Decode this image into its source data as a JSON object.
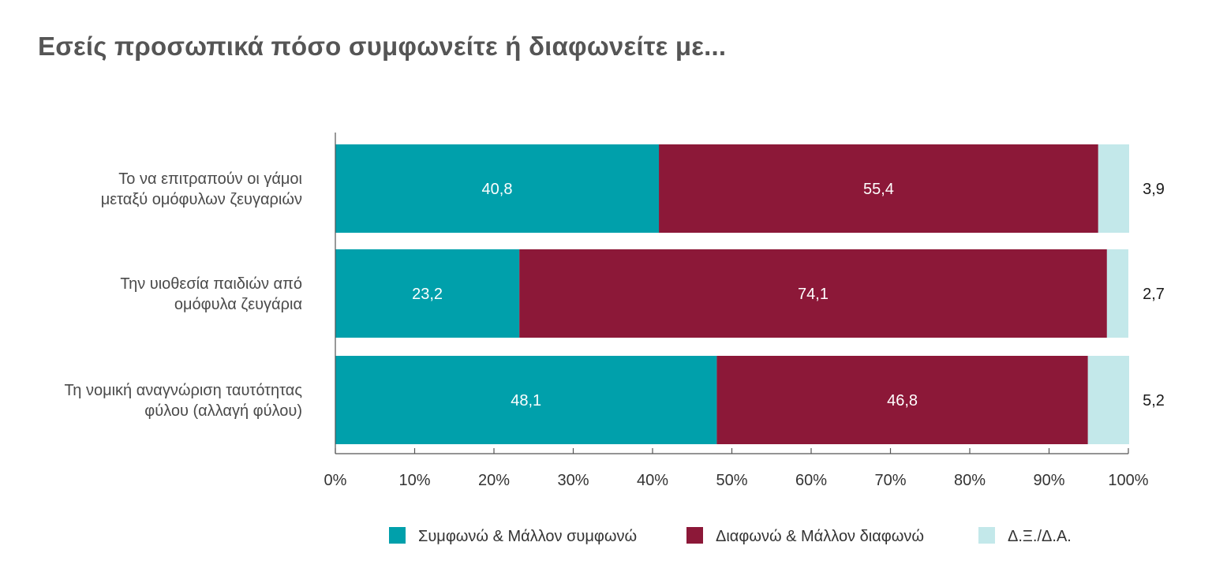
{
  "title": "Εσείς προσωπικά πόσο συμφωνείτε ή διαφωνείτε με...",
  "chart_data": {
    "type": "bar",
    "orientation": "horizontal",
    "stacked": true,
    "title": "Εσείς προσωπικά πόσο συμφωνείτε ή διαφωνείτε με...",
    "categories": [
      [
        "Το να επιτραπούν οι γάμοι",
        "μεταξύ ομόφυλων ζευγαριών"
      ],
      [
        "Την υιοθεσία παιδιών από",
        "ομόφυλα ζευγάρια"
      ],
      [
        "Τη νομική αναγνώριση ταυτότητας",
        "φύλου (αλλαγή φύλου)"
      ]
    ],
    "series": [
      {
        "name": "Συμφωνώ & Μάλλον συμφωνώ",
        "color": "#00a0ab",
        "values": [
          40.8,
          23.2,
          48.1
        ],
        "labels": [
          "40,8",
          "23,2",
          "48,1"
        ]
      },
      {
        "name": "Διαφωνώ & Μάλλον  διαφωνώ",
        "color": "#8c1838",
        "values": [
          55.4,
          74.1,
          46.8
        ],
        "labels": [
          "55,4",
          "74,1",
          "46,8"
        ]
      },
      {
        "name": "Δ.Ξ./Δ.Α.",
        "color": "#c3e8ea",
        "values": [
          3.9,
          2.7,
          5.2
        ],
        "labels": [
          "3,9",
          "2,7",
          "5,2"
        ]
      }
    ],
    "xlim": [
      0,
      100
    ],
    "xticks": [
      "0%",
      "10%",
      "20%",
      "30%",
      "40%",
      "50%",
      "60%",
      "70%",
      "80%",
      "90%",
      "100%"
    ],
    "legend_position": "bottom"
  }
}
